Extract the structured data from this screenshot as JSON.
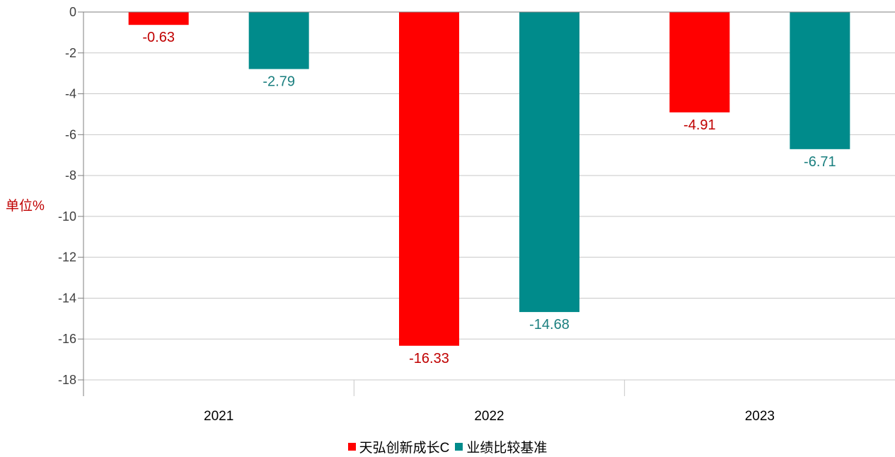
{
  "chart_data": {
    "type": "bar",
    "title": "",
    "xlabel": "",
    "ylabel": "单位%",
    "categories": [
      "2021",
      "2022",
      "2023"
    ],
    "ylim": [
      -18,
      0
    ],
    "yticks": [
      0,
      -2,
      -4,
      -6,
      -8,
      -10,
      -12,
      -14,
      -16,
      -18
    ],
    "grid": true,
    "legend_position": "bottom",
    "series": [
      {
        "name": "天弘创新成长C",
        "color": "#ff0000",
        "label_color": "#c00000",
        "values": [
          -0.63,
          -16.33,
          -4.91
        ]
      },
      {
        "name": "业绩比较基准",
        "color": "#008b8b",
        "label_color": "#1a7f7f",
        "values": [
          -2.79,
          -14.68,
          -6.71
        ]
      }
    ]
  }
}
